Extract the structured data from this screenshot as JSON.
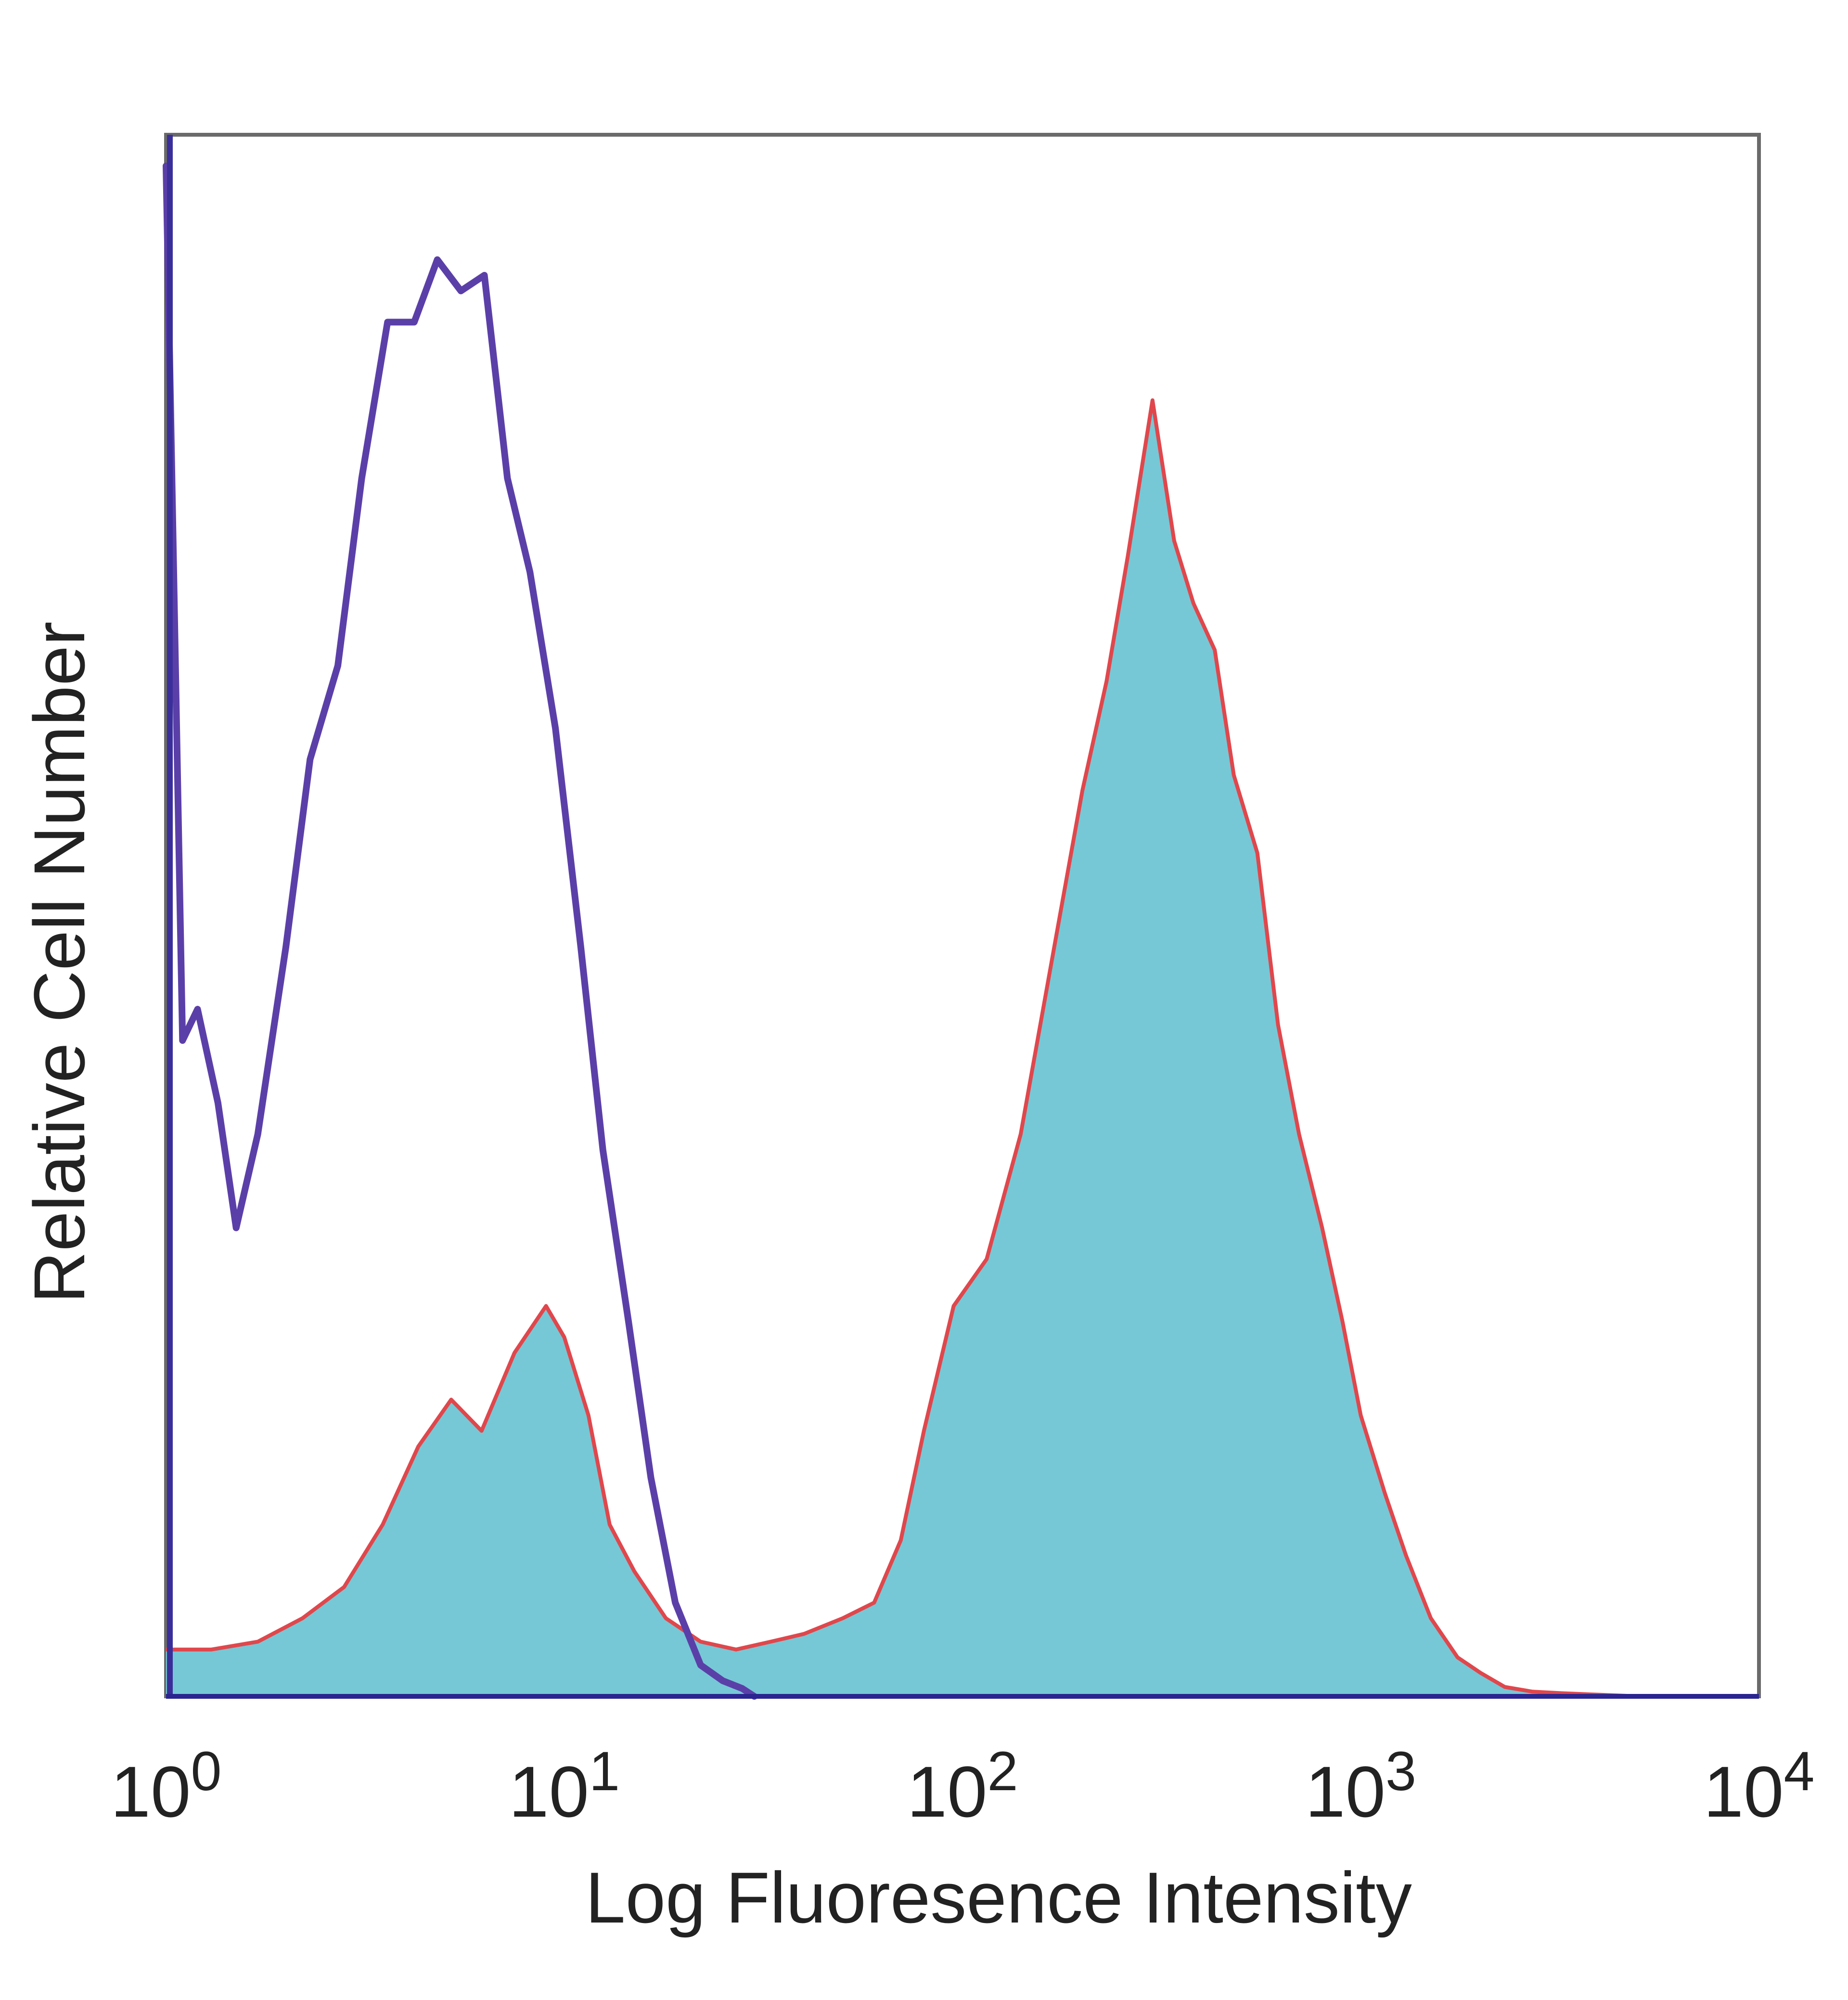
{
  "chart_data": {
    "type": "area",
    "title": "",
    "xlabel": "Log Fluoresence Intensity",
    "ylabel": "Relative Cell Number",
    "x_scale": "log",
    "xlim": [
      1,
      10000
    ],
    "ylim": [
      0,
      100
    ],
    "grid": false,
    "x_ticks": [
      {
        "value": 1,
        "base": "10",
        "exp": "0"
      },
      {
        "value": 10,
        "base": "10",
        "exp": "1"
      },
      {
        "value": 100,
        "base": "10",
        "exp": "2"
      },
      {
        "value": 1000,
        "base": "10",
        "exp": "3"
      },
      {
        "value": 10000,
        "base": "10",
        "exp": "4"
      }
    ],
    "series": [
      {
        "role": "control-outline",
        "color": "#5b3fa8",
        "fill": "none",
        "x": [
          1,
          1.1,
          1.2,
          1.35,
          1.5,
          1.7,
          2.0,
          2.3,
          2.7,
          3.1,
          3.6,
          4.2,
          4.8,
          5.5,
          6.3,
          7.2,
          8.2,
          9.5,
          11,
          12.5,
          14.5,
          16.5,
          19,
          22,
          25,
          28,
          30
        ],
        "y": [
          98,
          42,
          44,
          38,
          30,
          36,
          48,
          60,
          66,
          78,
          88,
          88,
          92,
          90,
          91,
          78,
          72,
          62,
          48,
          35,
          24,
          14,
          6,
          2,
          1,
          0.5,
          0
        ]
      },
      {
        "role": "stained-filled",
        "color": "#76c8d6",
        "outline": "#e0474c",
        "x": [
          1,
          1.3,
          1.7,
          2.2,
          2.8,
          3.5,
          4.3,
          5.2,
          6.2,
          7.5,
          9,
          10,
          11.5,
          13,
          15,
          18,
          22,
          27,
          33,
          40,
          50,
          60,
          70,
          80,
          95,
          115,
          140,
          170,
          200,
          230,
          260,
          300,
          340,
          380,
          430,
          480,
          550,
          620,
          700,
          800,
          900,
          1000,
          1150,
          1300,
          1500,
          1750,
          2000,
          2300,
          2700,
          3200,
          4000,
          5000
        ],
        "y": [
          3,
          3,
          3.5,
          5,
          7,
          11,
          16,
          19,
          17,
          22,
          25,
          23,
          18,
          11,
          8,
          5,
          3.5,
          3,
          3.5,
          4,
          5,
          6,
          10,
          17,
          25,
          28,
          36,
          48,
          58,
          65,
          73,
          83,
          74,
          70,
          67,
          59,
          54,
          43,
          36,
          30,
          24,
          18,
          13,
          9,
          5,
          2.5,
          1.5,
          0.6,
          0.3,
          0.2,
          0.1,
          0
        ]
      }
    ]
  }
}
